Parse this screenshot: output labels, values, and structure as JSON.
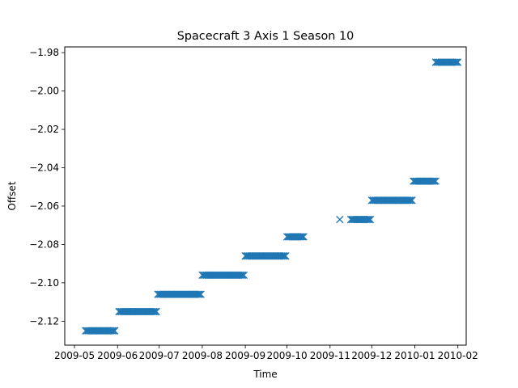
{
  "chart_data": {
    "type": "scatter",
    "title": "Spacecraft 3 Axis 1 Season 10",
    "xlabel": "Time",
    "ylabel": "Offset",
    "xlim": [
      "2009-04-24",
      "2010-02-07"
    ],
    "ylim": [
      -2.1325,
      -1.977
    ],
    "x_ticks": [
      "2009-05",
      "2009-06",
      "2009-07",
      "2009-08",
      "2009-09",
      "2009-10",
      "2009-11",
      "2009-12",
      "2010-01",
      "2010-02"
    ],
    "x_tick_dates": [
      "2009-05-01",
      "2009-06-01",
      "2009-07-01",
      "2009-08-01",
      "2009-09-01",
      "2009-10-01",
      "2009-11-01",
      "2009-12-01",
      "2010-01-01",
      "2010-02-01"
    ],
    "y_ticks": [
      "−1.98",
      "−2.00",
      "−2.02",
      "−2.04",
      "−2.06",
      "−2.08",
      "−2.10",
      "−2.12"
    ],
    "y_tick_values": [
      -1.98,
      -2.0,
      -2.02,
      -2.04,
      -2.06,
      -2.08,
      -2.1,
      -2.12
    ],
    "grid": false,
    "legend": "none",
    "marker": "x",
    "color": "#1f77b4",
    "segments": [
      {
        "start": "2009-05-09",
        "end": "2009-05-30",
        "y": -2.125
      },
      {
        "start": "2009-06-02",
        "end": "2009-06-29",
        "y": -2.115
      },
      {
        "start": "2009-06-30",
        "end": "2009-07-31",
        "y": -2.106
      },
      {
        "start": "2009-08-01",
        "end": "2009-08-31",
        "y": -2.096
      },
      {
        "start": "2009-09-01",
        "end": "2009-09-30",
        "y": -2.086
      },
      {
        "start": "2009-10-01",
        "end": "2009-10-13",
        "y": -2.076
      },
      {
        "start": "2009-11-08",
        "end": "2009-11-08",
        "y": -2.067
      },
      {
        "start": "2009-11-16",
        "end": "2009-11-30",
        "y": -2.067
      },
      {
        "start": "2009-12-01",
        "end": "2009-12-30",
        "y": -2.057
      },
      {
        "start": "2009-12-31",
        "end": "2010-01-16",
        "y": -2.047
      },
      {
        "start": "2010-01-16",
        "end": "2010-02-01",
        "y": -1.985
      }
    ]
  }
}
